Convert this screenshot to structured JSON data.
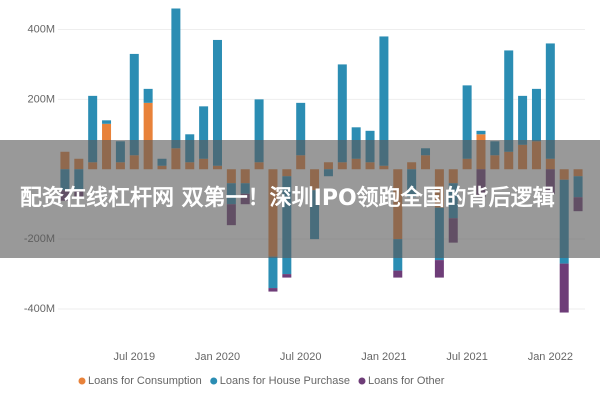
{
  "banner": {
    "title": "配资在线杠杆网 双第一！深圳IPO领跑全国的背后逻辑"
  },
  "chart_data": {
    "type": "bar",
    "stacked": true,
    "categories": [
      null,
      null,
      null,
      null,
      null,
      "Jul 2019",
      null,
      null,
      null,
      null,
      null,
      "Jan 2020",
      null,
      null,
      null,
      null,
      null,
      "Jul 2020",
      null,
      null,
      null,
      null,
      null,
      "Jan 2021",
      null,
      null,
      null,
      null,
      null,
      "Jul 2021",
      null,
      null,
      null,
      null,
      null,
      "Jan 2022",
      null,
      null
    ],
    "series": [
      {
        "name": "Loans for Consumption",
        "color": "#e8823a",
        "values": [
          50,
          30,
          20,
          130,
          20,
          40,
          190,
          10,
          60,
          20,
          30,
          10,
          -40,
          -40,
          20,
          -250,
          -20,
          40,
          -60,
          20,
          20,
          30,
          20,
          10,
          -200,
          20,
          40,
          -110,
          -40,
          30,
          100,
          40,
          50,
          70,
          80,
          30,
          -30,
          -20
        ]
      },
      {
        "name": "Loans for House Purchase",
        "color": "#2b8db3",
        "values": [
          -60,
          -60,
          190,
          10,
          60,
          290,
          40,
          20,
          400,
          80,
          150,
          360,
          -60,
          -30,
          180,
          -90,
          -280,
          150,
          -140,
          -20,
          280,
          90,
          90,
          370,
          -90,
          -80,
          20,
          -150,
          -100,
          210,
          10,
          40,
          290,
          140,
          150,
          330,
          -240,
          -60
        ]
      },
      {
        "name": "Loans for Other",
        "color": "#6e3d78",
        "values": [
          -30,
          -20,
          0,
          0,
          0,
          0,
          0,
          0,
          0,
          0,
          0,
          0,
          -60,
          -30,
          0,
          -10,
          -10,
          0,
          0,
          0,
          0,
          0,
          0,
          0,
          -20,
          0,
          0,
          -50,
          -70,
          0,
          -80,
          0,
          0,
          0,
          0,
          -70,
          -140,
          -40
        ]
      }
    ],
    "ylim": [
      -460,
      470
    ],
    "yticks": [
      {
        "value": -400,
        "label": "-400M"
      },
      {
        "value": -200,
        "label": "-200M"
      },
      {
        "value": 200,
        "label": "200M"
      },
      {
        "value": 400,
        "label": "400M"
      }
    ],
    "grid": true,
    "legend": "bottom"
  }
}
